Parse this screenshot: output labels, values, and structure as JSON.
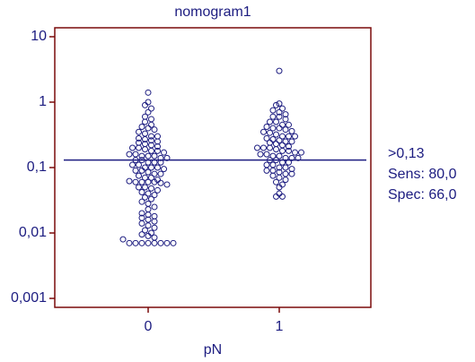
{
  "chart_data": {
    "type": "dot",
    "title": "nomogram1",
    "x_label": "pN",
    "categories": [
      "0",
      "1"
    ],
    "values": [
      [
        1.4,
        1.0,
        0.9,
        0.8,
        0.7,
        0.6,
        0.55,
        0.5,
        0.45,
        0.42,
        0.4,
        0.38,
        0.35,
        0.33,
        0.3,
        0.3,
        0.28,
        0.27,
        0.26,
        0.25,
        0.24,
        0.23,
        0.22,
        0.21,
        0.2,
        0.2,
        0.19,
        0.18,
        0.18,
        0.17,
        0.16,
        0.16,
        0.15,
        0.15,
        0.15,
        0.14,
        0.14,
        0.13,
        0.13,
        0.12,
        0.12,
        0.12,
        0.11,
        0.11,
        0.1,
        0.1,
        0.1,
        0.095,
        0.09,
        0.09,
        0.085,
        0.08,
        0.08,
        0.075,
        0.07,
        0.07,
        0.065,
        0.062,
        0.06,
        0.06,
        0.06,
        0.06,
        0.058,
        0.055,
        0.05,
        0.05,
        0.048,
        0.045,
        0.042,
        0.04,
        0.038,
        0.035,
        0.033,
        0.03,
        0.028,
        0.025,
        0.023,
        0.02,
        0.019,
        0.018,
        0.017,
        0.016,
        0.015,
        0.014,
        0.013,
        0.012,
        0.011,
        0.01,
        0.0095,
        0.009,
        0.0085,
        0.008,
        0.007,
        0.007,
        0.007,
        0.007,
        0.007,
        0.007,
        0.007,
        0.007
      ],
      [
        3.0,
        0.95,
        0.9,
        0.8,
        0.75,
        0.7,
        0.65,
        0.6,
        0.6,
        0.55,
        0.5,
        0.5,
        0.45,
        0.45,
        0.42,
        0.4,
        0.4,
        0.38,
        0.36,
        0.35,
        0.34,
        0.32,
        0.3,
        0.3,
        0.3,
        0.28,
        0.27,
        0.26,
        0.25,
        0.25,
        0.24,
        0.23,
        0.22,
        0.21,
        0.2,
        0.2,
        0.2,
        0.19,
        0.18,
        0.18,
        0.17,
        0.17,
        0.16,
        0.16,
        0.15,
        0.15,
        0.14,
        0.14,
        0.14,
        0.13,
        0.13,
        0.12,
        0.12,
        0.11,
        0.11,
        0.1,
        0.1,
        0.095,
        0.09,
        0.09,
        0.085,
        0.08,
        0.08,
        0.075,
        0.07,
        0.065,
        0.06,
        0.055,
        0.05,
        0.04,
        0.036,
        0.036
      ]
    ],
    "color": "#1c1c80",
    "frame_color": "#7a0a0a",
    "log_scale": true,
    "ylim": [
      0.00073,
      13.7
    ],
    "yticks": [
      10,
      1,
      {
        "value": 0.1,
        "label": "0,1"
      },
      {
        "value": 0.01,
        "label": "0,01"
      },
      {
        "value": 0.001,
        "label": "0,001"
      }
    ],
    "cutoff": 0.13,
    "annotations": [
      ">0,13",
      "Sens: 80,0",
      "Spec: 66,0"
    ]
  }
}
